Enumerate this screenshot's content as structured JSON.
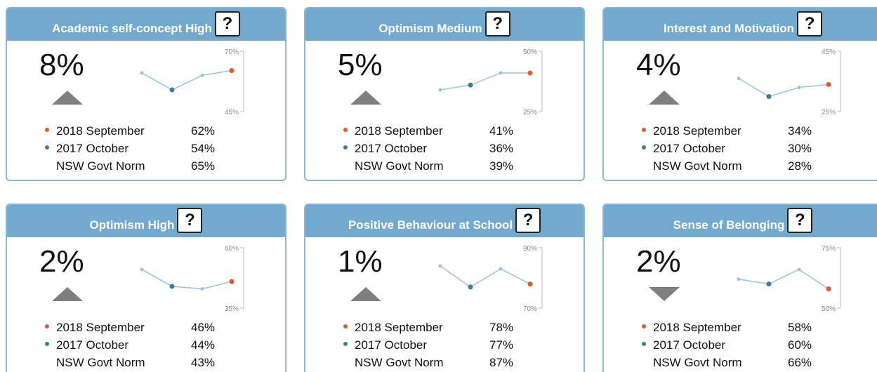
{
  "chart_data": [
    {
      "type": "line",
      "title": "Academic self-concept High",
      "help": "?",
      "change": "8%",
      "direction": "up",
      "values": [
        61,
        54,
        60,
        62
      ],
      "ylim": [
        45,
        70
      ],
      "yticks": [
        {
          "value": 45,
          "label": "45%"
        },
        {
          "value": 70,
          "label": "70%"
        }
      ],
      "rows": [
        {
          "name": "2018 September",
          "value": "62%"
        },
        {
          "name": "2017 October",
          "value": "54%"
        },
        {
          "name": "NSW Govt Norm",
          "value": "65%"
        }
      ]
    },
    {
      "type": "line",
      "title": "Optimism Medium",
      "help": "?",
      "change": "5%",
      "direction": "up",
      "values": [
        34,
        36,
        41,
        41
      ],
      "ylim": [
        25,
        50
      ],
      "yticks": [
        {
          "value": 25,
          "label": "25%"
        },
        {
          "value": 50,
          "label": "50%"
        }
      ],
      "rows": [
        {
          "name": "2018 September",
          "value": "41%"
        },
        {
          "name": "2017 October",
          "value": "36%"
        },
        {
          "name": "NSW Govt Norm",
          "value": "39%"
        }
      ]
    },
    {
      "type": "line",
      "title": "Interest and Motivation",
      "help": "?",
      "change": "4%",
      "direction": "up",
      "values": [
        36,
        30,
        33,
        34
      ],
      "ylim": [
        25,
        45
      ],
      "yticks": [
        {
          "value": 25,
          "label": "25%"
        },
        {
          "value": 45,
          "label": "45%"
        }
      ],
      "rows": [
        {
          "name": "2018 September",
          "value": "34%"
        },
        {
          "name": "2017 October",
          "value": "30%"
        },
        {
          "name": "NSW Govt Norm",
          "value": "28%"
        }
      ]
    },
    {
      "type": "line",
      "title": "Optimism High",
      "help": "?",
      "change": "2%",
      "direction": "up",
      "values": [
        51,
        44,
        43,
        46
      ],
      "ylim": [
        35,
        60
      ],
      "yticks": [
        {
          "value": 35,
          "label": "35%"
        },
        {
          "value": 60,
          "label": "60%"
        }
      ],
      "rows": [
        {
          "name": "2018 September",
          "value": "46%"
        },
        {
          "name": "2017 October",
          "value": "44%"
        },
        {
          "name": "NSW Govt Norm",
          "value": "43%"
        }
      ]
    },
    {
      "type": "line",
      "title": "Positive Behaviour at School",
      "help": "?",
      "change": "1%",
      "direction": "up",
      "values": [
        84,
        77,
        83,
        78
      ],
      "ylim": [
        70,
        90
      ],
      "yticks": [
        {
          "value": 70,
          "label": "70%"
        },
        {
          "value": 90,
          "label": "90%"
        }
      ],
      "rows": [
        {
          "name": "2018 September",
          "value": "78%"
        },
        {
          "name": "2017 October",
          "value": "77%"
        },
        {
          "name": "NSW Govt Norm",
          "value": "87%"
        }
      ]
    },
    {
      "type": "line",
      "title": "Sense of Belonging",
      "help": "?",
      "change": "2%",
      "direction": "down",
      "values": [
        62,
        60,
        66,
        58
      ],
      "ylim": [
        50,
        75
      ],
      "yticks": [
        {
          "value": 50,
          "label": "50%"
        },
        {
          "value": 75,
          "label": "75%"
        }
      ],
      "rows": [
        {
          "name": "2018 September",
          "value": "58%"
        },
        {
          "name": "2017 October",
          "value": "60%"
        },
        {
          "name": "NSW Govt Norm",
          "value": "66%"
        }
      ]
    }
  ],
  "style": {
    "line": "#9cc3dc",
    "current": "#e8542a",
    "previous": "#3b7d98",
    "arrow": "#7f7f7f",
    "header": "#74a9cf"
  }
}
